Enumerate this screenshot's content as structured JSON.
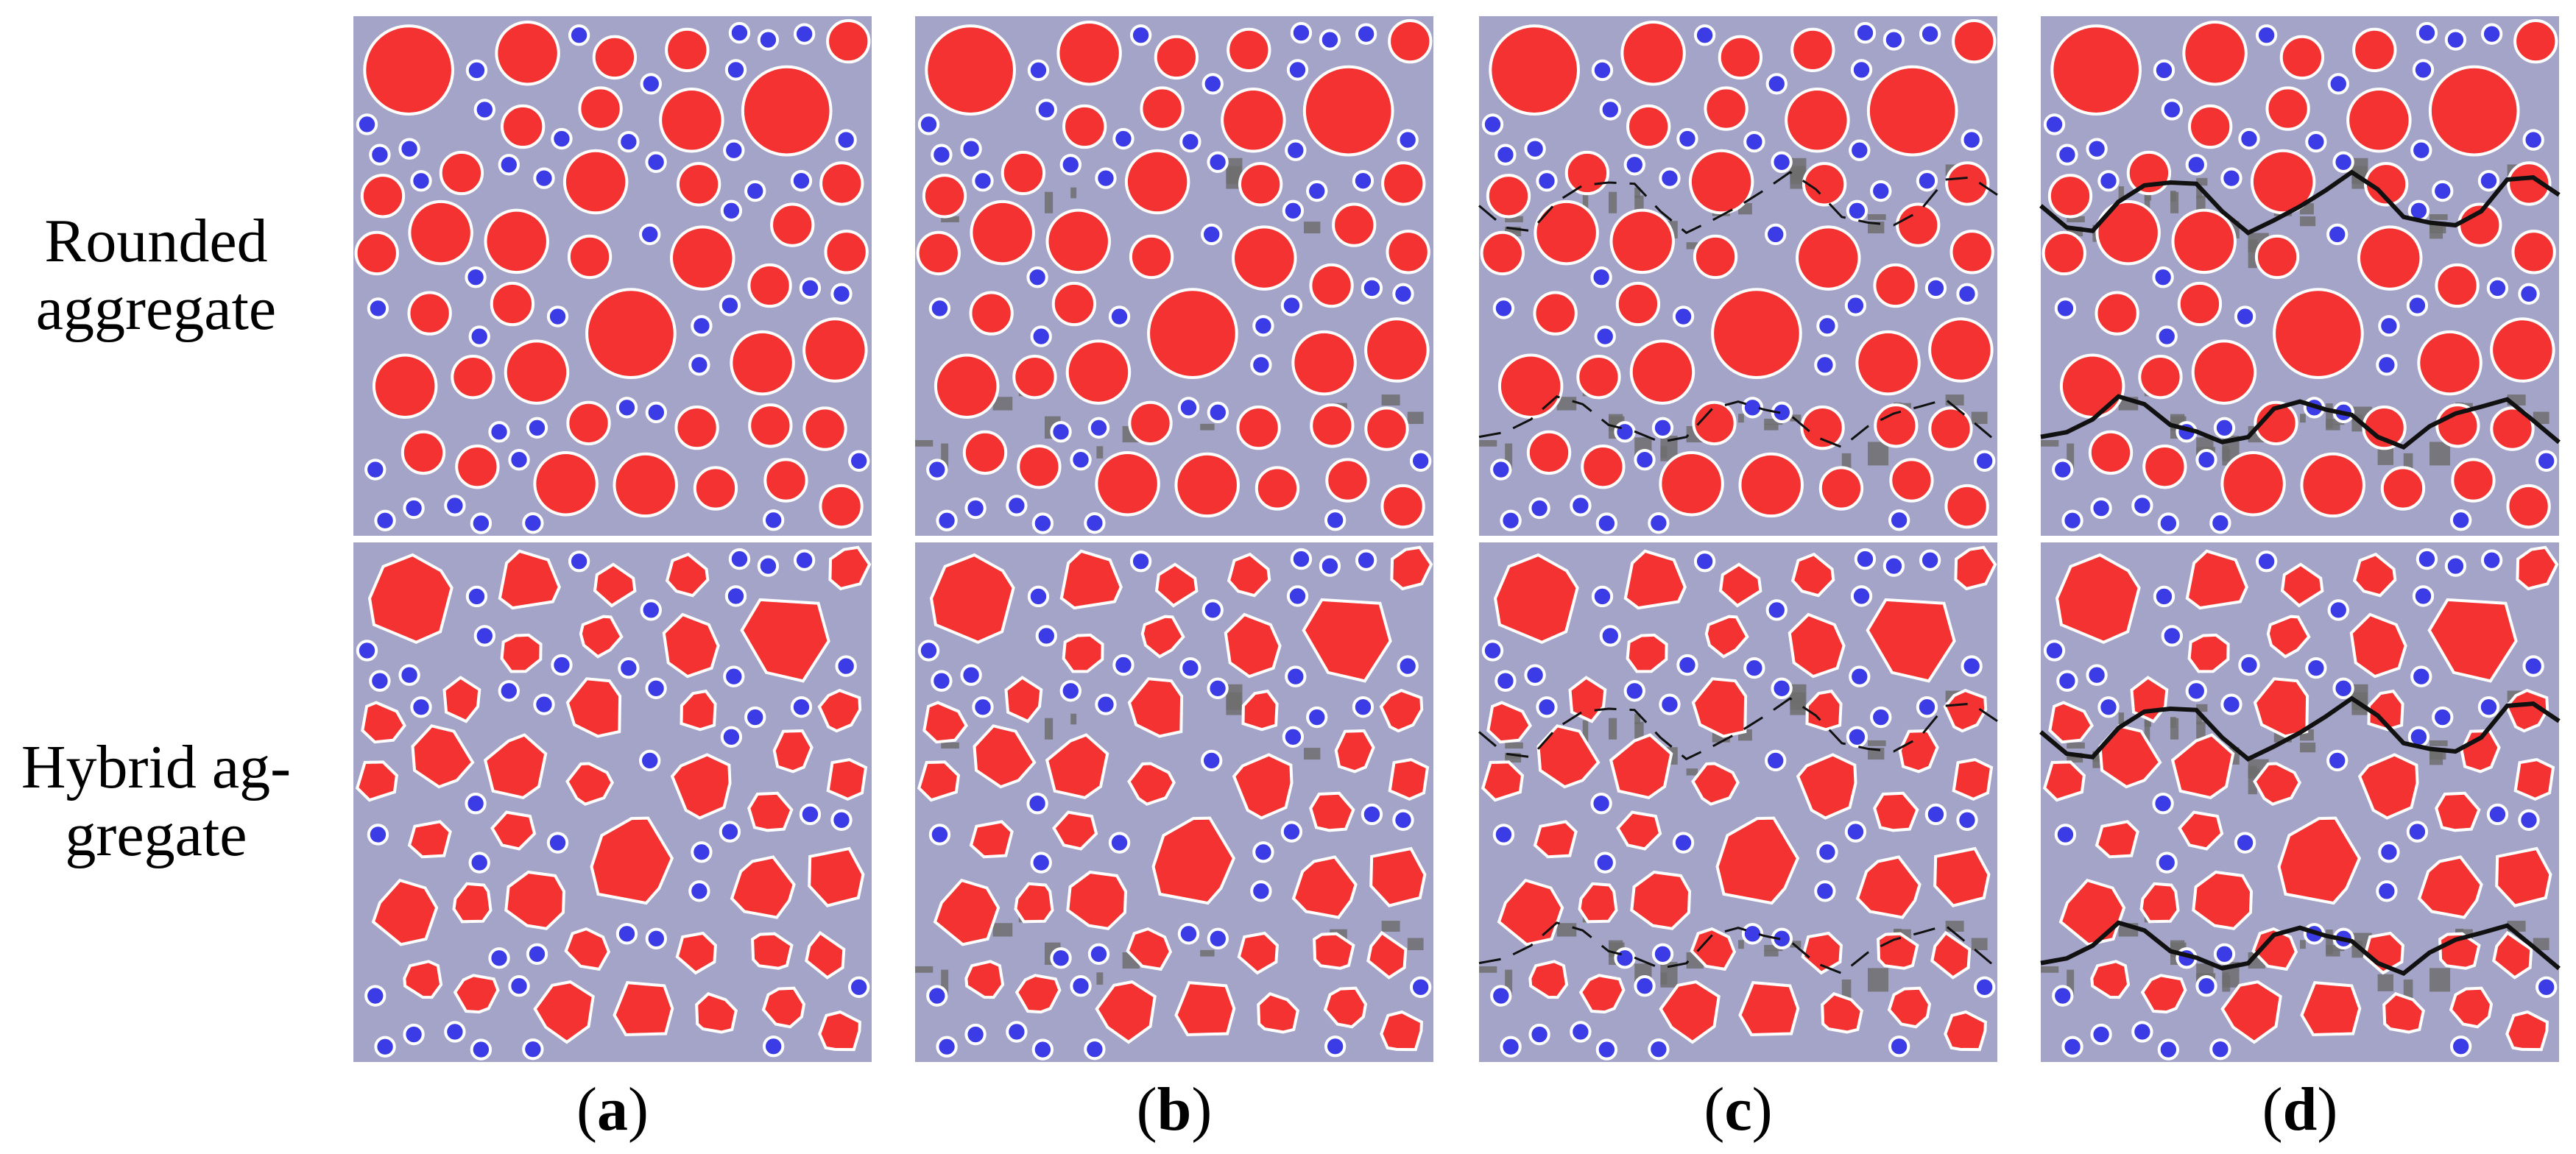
{
  "rows": [
    {
      "lines": [
        "Rounded",
        "aggregate"
      ]
    },
    {
      "lines": [
        "Hybrid ag-",
        "gregate"
      ]
    }
  ],
  "columns": [
    {
      "prefix": "(",
      "letter": "a",
      "suffix": ")"
    },
    {
      "prefix": "(",
      "letter": "b",
      "suffix": ")"
    },
    {
      "prefix": "(",
      "letter": "c",
      "suffix": ")"
    },
    {
      "prefix": "(",
      "letter": "d",
      "suffix": ")"
    }
  ]
}
